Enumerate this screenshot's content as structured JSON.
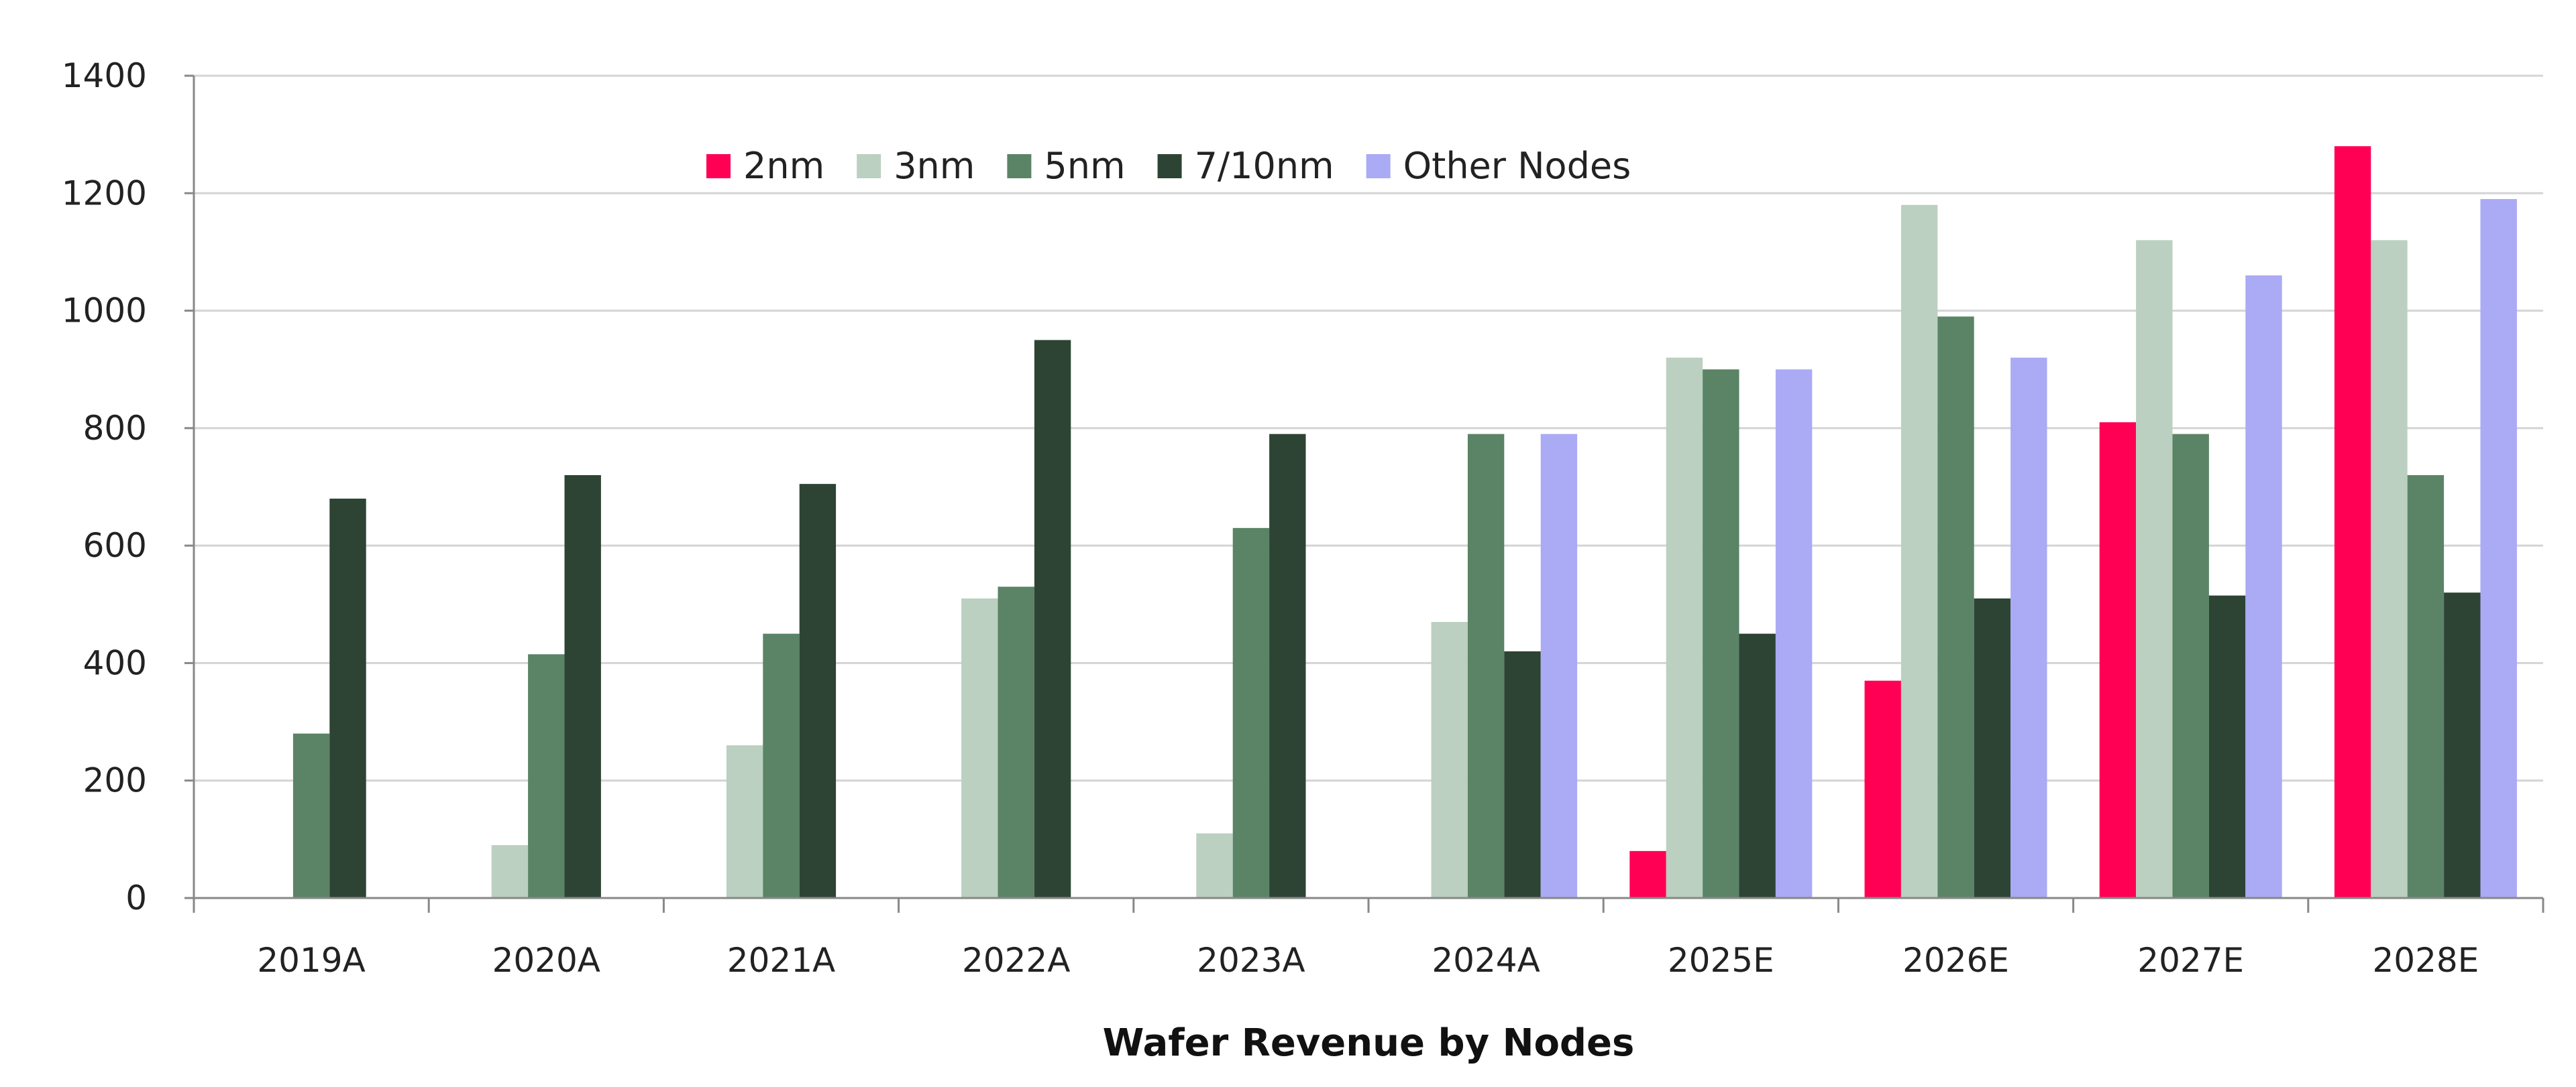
{
  "chart_data": {
    "type": "bar",
    "title": "Wafer Revenue by Nodes",
    "xlabel": "Wafer Revenue by Nodes",
    "ylabel": "",
    "ylim": [
      0,
      1400
    ],
    "yticks": [
      0,
      200,
      400,
      600,
      800,
      1000,
      1200,
      1400
    ],
    "grid": true,
    "legend_position": "top-center",
    "categories": [
      "2019A",
      "2020A",
      "2021A",
      "2022A",
      "2023A",
      "2024A",
      "2025E",
      "2026E",
      "2027E",
      "2028E"
    ],
    "series": [
      {
        "name": "2nm",
        "color": "#FF0055",
        "values": [
          null,
          null,
          null,
          null,
          null,
          null,
          80,
          370,
          810,
          1280
        ]
      },
      {
        "name": "3nm",
        "color": "#BBD0C0",
        "values": [
          null,
          90,
          260,
          510,
          110,
          470,
          920,
          1180,
          1120,
          1120
        ]
      },
      {
        "name": "5nm",
        "color": "#5A8465",
        "values": [
          280,
          415,
          450,
          530,
          630,
          790,
          900,
          990,
          790,
          720
        ]
      },
      {
        "name": "7/10nm",
        "color": "#2D4434",
        "values": [
          680,
          720,
          705,
          950,
          790,
          420,
          450,
          510,
          515,
          520
        ]
      },
      {
        "name": "Other Nodes",
        "color": "#AAAAF5",
        "values": [
          null,
          null,
          null,
          null,
          null,
          790,
          900,
          920,
          1060,
          1190
        ]
      }
    ]
  }
}
